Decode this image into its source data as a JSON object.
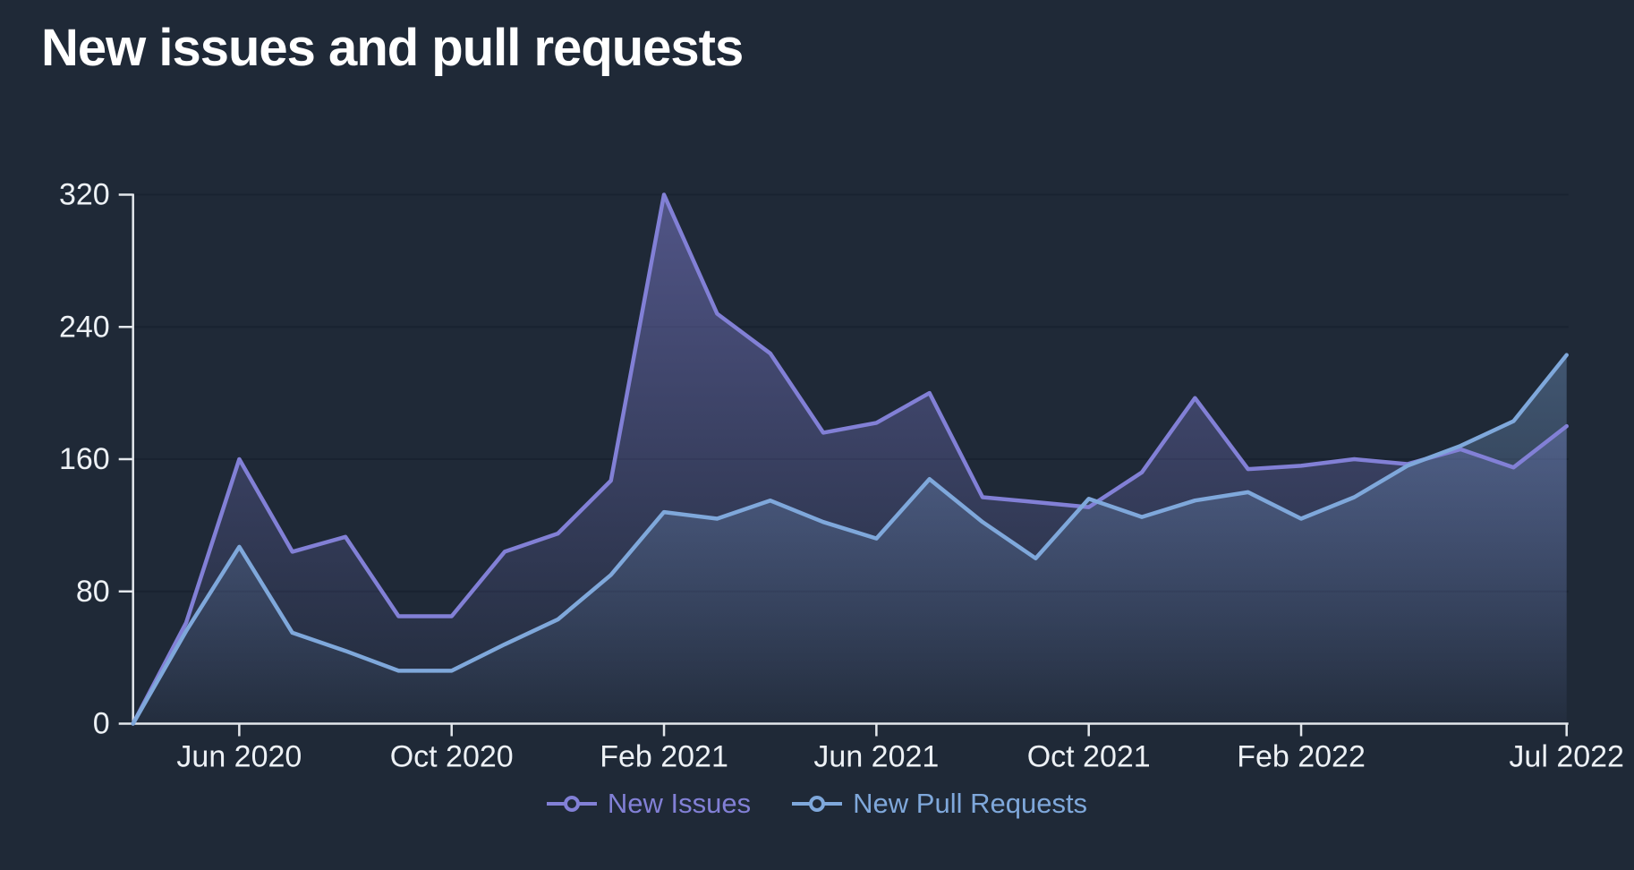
{
  "title": "New issues and pull requests",
  "colors": {
    "background": "#1F2937",
    "grid": "#192230",
    "axis": "#E3E7EC",
    "tick_label": "#EDF1F5",
    "title": "#FFFFFF",
    "new_issues": "#8280D6",
    "new_pull_requests": "#7FA8DB"
  },
  "chart_data": {
    "type": "area",
    "title": "New issues and pull requests",
    "x": [
      "Apr 2020",
      "May 2020",
      "Jun 2020",
      "Jul 2020",
      "Aug 2020",
      "Sep 2020",
      "Oct 2020",
      "Nov 2020",
      "Dec 2020",
      "Jan 2021",
      "Feb 2021",
      "Mar 2021",
      "Apr 2021",
      "May 2021",
      "Jun 2021",
      "Jul 2021",
      "Aug 2021",
      "Sep 2021",
      "Oct 2021",
      "Nov 2021",
      "Dec 2021",
      "Jan 2022",
      "Feb 2022",
      "Mar 2022",
      "Apr 2022",
      "May 2022",
      "Jun 2022",
      "Jul 2022"
    ],
    "series": [
      {
        "name": "New Issues",
        "color": "#8280D6",
        "values": [
          0,
          61,
          160,
          104,
          113,
          65,
          65,
          104,
          115,
          147,
          320,
          248,
          224,
          176,
          182,
          200,
          137,
          134,
          131,
          152,
          197,
          154,
          156,
          160,
          157,
          166,
          155,
          180
        ]
      },
      {
        "name": "New Pull Requests",
        "color": "#7FA8DB",
        "values": [
          0,
          56,
          107,
          55,
          44,
          32,
          32,
          48,
          63,
          90,
          128,
          124,
          135,
          122,
          112,
          148,
          122,
          100,
          136,
          125,
          135,
          140,
          124,
          137,
          156,
          168,
          183,
          223
        ]
      }
    ],
    "x_tick_indices": [
      2,
      6,
      10,
      14,
      18,
      22,
      27
    ],
    "x_tick_labels": [
      "Jun 2020",
      "Oct 2020",
      "Feb 2021",
      "Jun 2021",
      "Oct 2021",
      "Feb 2022",
      "Jul 2022"
    ],
    "y_ticks": [
      0,
      80,
      160,
      240,
      320
    ],
    "ylim": [
      0,
      320
    ],
    "grid": "horizontal-only",
    "legend_position": "bottom"
  },
  "legend": {
    "items": [
      {
        "label": "New Issues",
        "color": "#8280D6"
      },
      {
        "label": "New Pull Requests",
        "color": "#7FA8DB"
      }
    ]
  }
}
